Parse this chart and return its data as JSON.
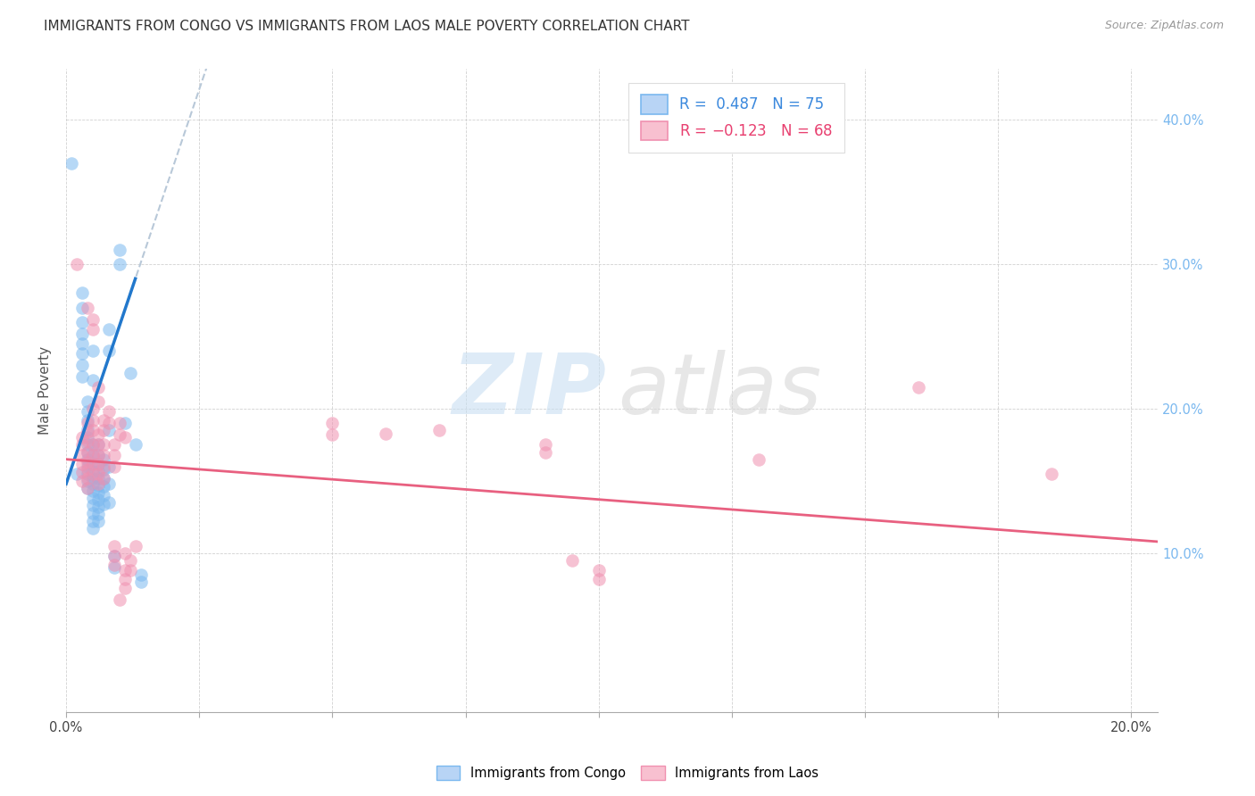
{
  "title": "IMMIGRANTS FROM CONGO VS IMMIGRANTS FROM LAOS MALE POVERTY CORRELATION CHART",
  "source": "Source: ZipAtlas.com",
  "ylabel": "Male Poverty",
  "xlim": [
    0.0,
    0.205
  ],
  "ylim": [
    -0.01,
    0.435
  ],
  "plot_ylim": [
    0.0,
    0.42
  ],
  "congo_color": "#7ab8ef",
  "laos_color": "#f090b0",
  "congo_line_color": "#2278cc",
  "laos_line_color": "#e86080",
  "dashed_line_color": "#b8c8d8",
  "watermark_zip": "ZIP",
  "watermark_atlas": "atlas",
  "right_tick_color": "#7ab8ef",
  "congo_points": [
    [
      0.001,
      0.37
    ],
    [
      0.002,
      0.155
    ],
    [
      0.003,
      0.28
    ],
    [
      0.003,
      0.27
    ],
    [
      0.003,
      0.26
    ],
    [
      0.003,
      0.252
    ],
    [
      0.003,
      0.245
    ],
    [
      0.003,
      0.238
    ],
    [
      0.003,
      0.23
    ],
    [
      0.003,
      0.222
    ],
    [
      0.004,
      0.205
    ],
    [
      0.004,
      0.198
    ],
    [
      0.004,
      0.192
    ],
    [
      0.004,
      0.186
    ],
    [
      0.004,
      0.18
    ],
    [
      0.004,
      0.175
    ],
    [
      0.004,
      0.17
    ],
    [
      0.004,
      0.165
    ],
    [
      0.004,
      0.16
    ],
    [
      0.004,
      0.155
    ],
    [
      0.004,
      0.15
    ],
    [
      0.004,
      0.145
    ],
    [
      0.005,
      0.24
    ],
    [
      0.005,
      0.22
    ],
    [
      0.005,
      0.175
    ],
    [
      0.005,
      0.168
    ],
    [
      0.005,
      0.162
    ],
    [
      0.005,
      0.157
    ],
    [
      0.005,
      0.152
    ],
    [
      0.005,
      0.148
    ],
    [
      0.005,
      0.143
    ],
    [
      0.005,
      0.138
    ],
    [
      0.005,
      0.133
    ],
    [
      0.005,
      0.128
    ],
    [
      0.005,
      0.122
    ],
    [
      0.005,
      0.117
    ],
    [
      0.006,
      0.175
    ],
    [
      0.006,
      0.168
    ],
    [
      0.006,
      0.162
    ],
    [
      0.006,
      0.157
    ],
    [
      0.006,
      0.152
    ],
    [
      0.006,
      0.147
    ],
    [
      0.006,
      0.142
    ],
    [
      0.006,
      0.137
    ],
    [
      0.006,
      0.132
    ],
    [
      0.006,
      0.127
    ],
    [
      0.006,
      0.122
    ],
    [
      0.007,
      0.165
    ],
    [
      0.007,
      0.158
    ],
    [
      0.007,
      0.152
    ],
    [
      0.007,
      0.146
    ],
    [
      0.007,
      0.14
    ],
    [
      0.007,
      0.134
    ],
    [
      0.008,
      0.255
    ],
    [
      0.008,
      0.24
    ],
    [
      0.008,
      0.185
    ],
    [
      0.008,
      0.16
    ],
    [
      0.008,
      0.148
    ],
    [
      0.008,
      0.135
    ],
    [
      0.009,
      0.098
    ],
    [
      0.009,
      0.09
    ],
    [
      0.01,
      0.31
    ],
    [
      0.01,
      0.3
    ],
    [
      0.011,
      0.19
    ],
    [
      0.012,
      0.225
    ],
    [
      0.013,
      0.175
    ],
    [
      0.014,
      0.085
    ],
    [
      0.014,
      0.08
    ]
  ],
  "laos_points": [
    [
      0.002,
      0.3
    ],
    [
      0.003,
      0.18
    ],
    [
      0.003,
      0.175
    ],
    [
      0.003,
      0.168
    ],
    [
      0.003,
      0.162
    ],
    [
      0.003,
      0.156
    ],
    [
      0.003,
      0.15
    ],
    [
      0.004,
      0.27
    ],
    [
      0.004,
      0.19
    ],
    [
      0.004,
      0.184
    ],
    [
      0.004,
      0.178
    ],
    [
      0.004,
      0.17
    ],
    [
      0.004,
      0.163
    ],
    [
      0.004,
      0.158
    ],
    [
      0.004,
      0.152
    ],
    [
      0.004,
      0.145
    ],
    [
      0.005,
      0.262
    ],
    [
      0.005,
      0.255
    ],
    [
      0.005,
      0.2
    ],
    [
      0.005,
      0.192
    ],
    [
      0.005,
      0.185
    ],
    [
      0.005,
      0.175
    ],
    [
      0.005,
      0.168
    ],
    [
      0.005,
      0.162
    ],
    [
      0.005,
      0.155
    ],
    [
      0.006,
      0.215
    ],
    [
      0.006,
      0.205
    ],
    [
      0.006,
      0.182
    ],
    [
      0.006,
      0.175
    ],
    [
      0.006,
      0.168
    ],
    [
      0.006,
      0.162
    ],
    [
      0.006,
      0.155
    ],
    [
      0.006,
      0.148
    ],
    [
      0.007,
      0.192
    ],
    [
      0.007,
      0.185
    ],
    [
      0.007,
      0.175
    ],
    [
      0.007,
      0.168
    ],
    [
      0.007,
      0.16
    ],
    [
      0.007,
      0.152
    ],
    [
      0.008,
      0.198
    ],
    [
      0.008,
      0.19
    ],
    [
      0.009,
      0.175
    ],
    [
      0.009,
      0.168
    ],
    [
      0.009,
      0.16
    ],
    [
      0.009,
      0.105
    ],
    [
      0.009,
      0.098
    ],
    [
      0.009,
      0.092
    ],
    [
      0.01,
      0.19
    ],
    [
      0.01,
      0.182
    ],
    [
      0.01,
      0.068
    ],
    [
      0.011,
      0.18
    ],
    [
      0.011,
      0.1
    ],
    [
      0.011,
      0.088
    ],
    [
      0.011,
      0.082
    ],
    [
      0.011,
      0.076
    ],
    [
      0.012,
      0.095
    ],
    [
      0.012,
      0.088
    ],
    [
      0.013,
      0.105
    ],
    [
      0.05,
      0.19
    ],
    [
      0.05,
      0.182
    ],
    [
      0.06,
      0.183
    ],
    [
      0.07,
      0.185
    ],
    [
      0.09,
      0.175
    ],
    [
      0.09,
      0.17
    ],
    [
      0.095,
      0.095
    ],
    [
      0.1,
      0.088
    ],
    [
      0.1,
      0.082
    ],
    [
      0.13,
      0.165
    ],
    [
      0.16,
      0.215
    ],
    [
      0.185,
      0.155
    ]
  ],
  "title_fontsize": 11,
  "source_fontsize": 9,
  "tick_fontsize": 10.5,
  "legend_fontsize": 12
}
